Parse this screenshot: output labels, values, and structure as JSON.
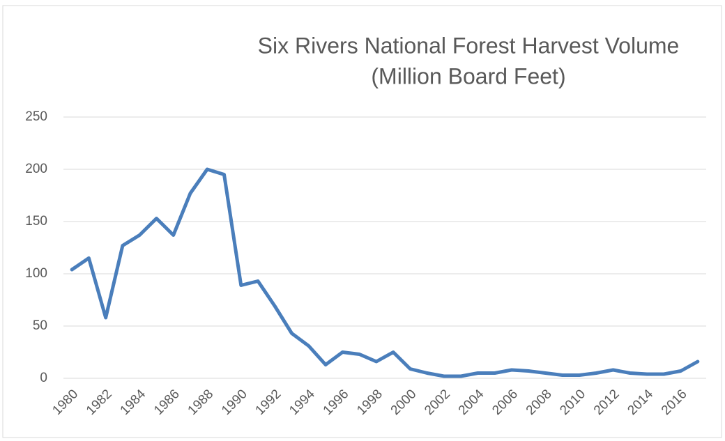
{
  "chart_data": {
    "type": "line",
    "title": [
      "Six Rivers National Forest Harvest Volume",
      "(Million Board Feet)"
    ],
    "categories": [
      "1980",
      null,
      "1982",
      null,
      "1984",
      null,
      "1986",
      null,
      "1988",
      null,
      "1990",
      null,
      "1992",
      null,
      "1994",
      null,
      "1996",
      null,
      "1998",
      null,
      "2000",
      null,
      "2002",
      null,
      "2004",
      null,
      "2006",
      null,
      "2008",
      null,
      "2010",
      null,
      "2012",
      null,
      "2014",
      null,
      "2016",
      null
    ],
    "series": [
      {
        "name": "Harvest Volume",
        "color": "#4a7ebb",
        "values": [
          104,
          115,
          58,
          127,
          137,
          153,
          137,
          177,
          200,
          195,
          89,
          93,
          69,
          43,
          31,
          13,
          25,
          23,
          16,
          25,
          9,
          5,
          2,
          2,
          5,
          5,
          8,
          7,
          5,
          3,
          3,
          5,
          8,
          5,
          4,
          4,
          7,
          16
        ]
      }
    ],
    "ylim": [
      0,
      250
    ],
    "yticks": [
      0,
      50,
      100,
      150,
      200,
      250
    ],
    "grid": true
  }
}
